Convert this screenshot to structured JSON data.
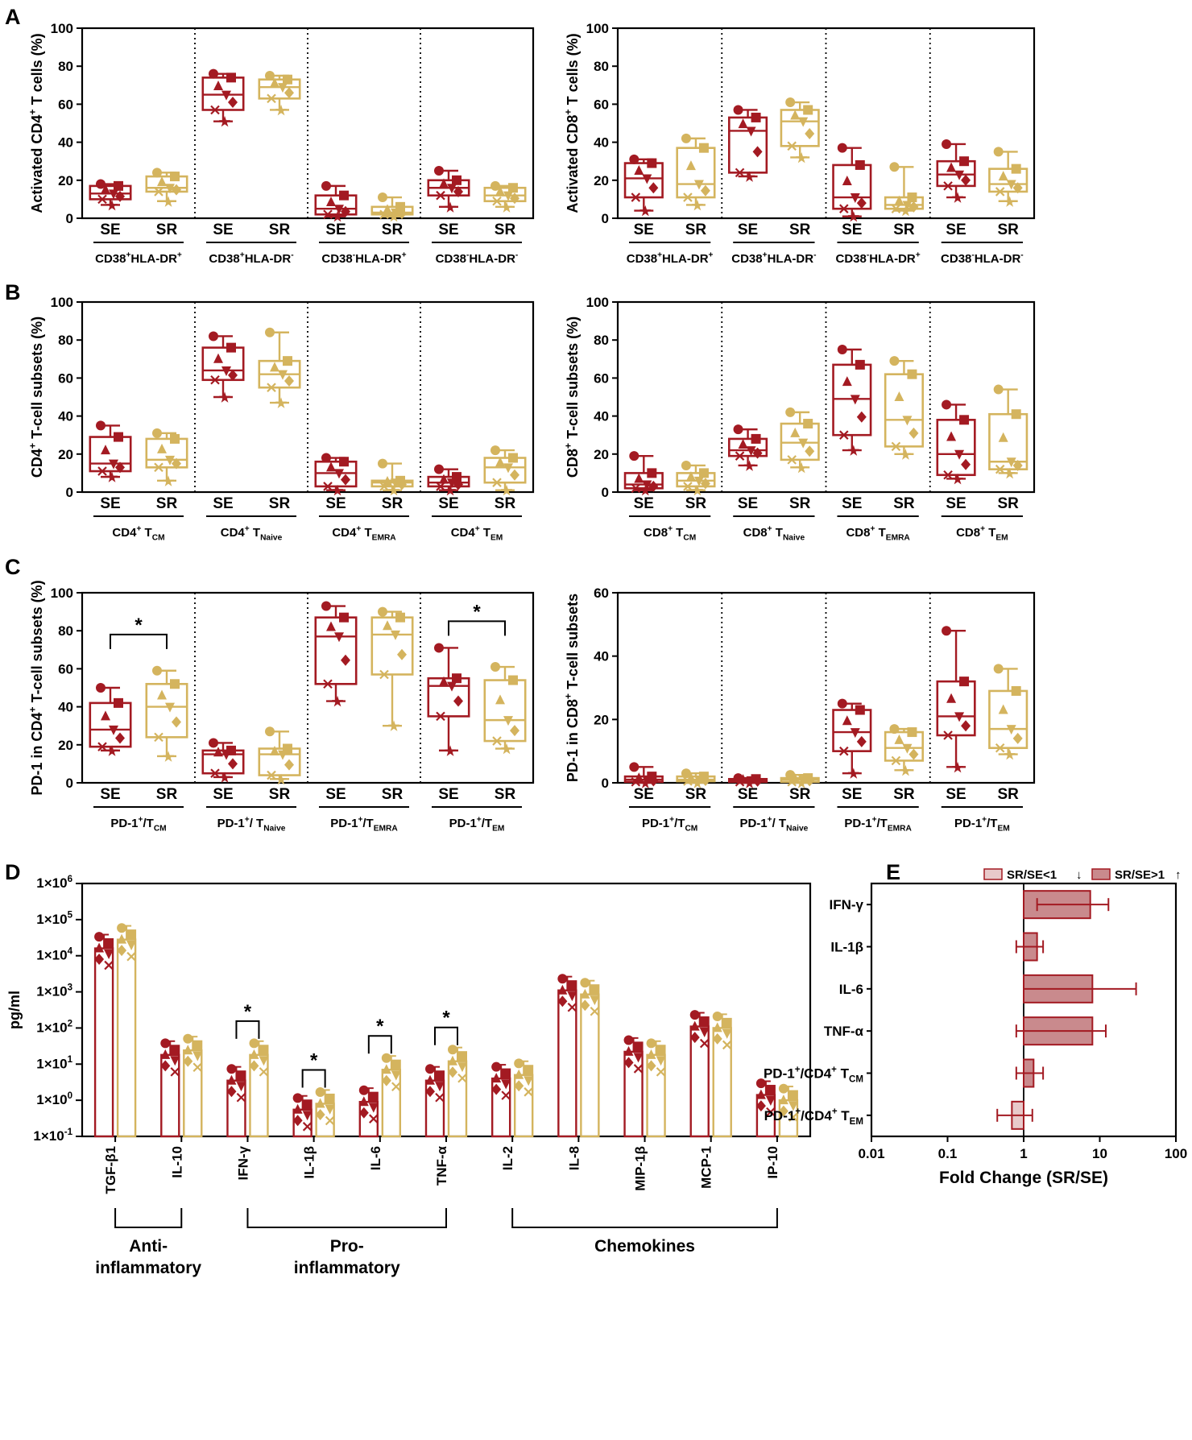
{
  "colors": {
    "SE": "#a31a22",
    "SR": "#d4b45e",
    "axis": "#000000"
  },
  "panel_letters": [
    "A",
    "B",
    "C",
    "D",
    "E"
  ],
  "box_panels": [
    {
      "id": "A-left",
      "panel": "A",
      "ylabel": "Activated CD4⁺ T cells (%)",
      "ymax": 100,
      "yticks": [
        "0",
        "20",
        "40",
        "60",
        "80",
        "100"
      ],
      "categories": [
        "SE",
        "SR"
      ],
      "groups": [
        "CD38⁺HLA-DR⁺",
        "CD38⁺HLA-DR⁻",
        "CD38⁻HLA-DR⁺",
        "CD38⁻HLA-DR⁻"
      ],
      "boxes": [
        [
          7,
          10,
          13,
          17,
          18
        ],
        [
          9,
          14,
          16,
          22,
          24
        ],
        [
          51,
          57,
          65,
          74,
          76
        ],
        [
          57,
          63,
          69,
          73,
          75
        ],
        [
          1,
          2,
          5,
          12,
          17
        ],
        [
          1,
          2,
          3,
          6,
          11
        ],
        [
          6,
          12,
          16,
          20,
          25
        ],
        [
          6,
          9,
          12,
          16,
          17
        ]
      ],
      "stars": []
    },
    {
      "id": "A-right",
      "panel": "A",
      "ylabel": "Activated CD8⁺ T cells (%)",
      "ymax": 100,
      "yticks": [
        "0",
        "20",
        "40",
        "60",
        "80",
        "100"
      ],
      "categories": [
        "SE",
        "SR"
      ],
      "groups": [
        "CD38⁺HLA-DR⁺",
        "CD38⁺HLA-DR⁻",
        "CD38⁻HLA-DR⁺",
        "CD38⁻HLA-DR⁻"
      ],
      "boxes": [
        [
          4,
          11,
          21,
          29,
          31
        ],
        [
          7,
          11,
          18,
          37,
          42
        ],
        [
          22,
          24,
          46,
          53,
          57
        ],
        [
          32,
          38,
          51,
          57,
          61
        ],
        [
          1,
          5,
          11,
          28,
          37
        ],
        [
          4,
          5,
          7,
          11,
          27
        ],
        [
          11,
          17,
          23,
          30,
          39
        ],
        [
          9,
          14,
          18,
          26,
          35
        ]
      ],
      "stars": []
    },
    {
      "id": "B-left",
      "panel": "B",
      "ylabel": "CD4⁺ T-cell subsets (%)",
      "ymax": 100,
      "yticks": [
        "0",
        "20",
        "40",
        "60",
        "80",
        "100"
      ],
      "categories": [
        "SE",
        "SR"
      ],
      "groups": [
        "CD4⁺ T_CM",
        "CD4⁺ T_Naive",
        "CD4⁺ T_EMRA",
        "CD4⁺ T_EM"
      ],
      "boxes": [
        [
          8,
          11,
          15,
          29,
          35
        ],
        [
          6,
          13,
          17,
          28,
          31
        ],
        [
          50,
          59,
          64,
          76,
          82
        ],
        [
          47,
          55,
          62,
          69,
          84
        ],
        [
          1,
          3,
          10,
          16,
          18
        ],
        [
          1,
          3,
          5,
          6,
          15
        ],
        [
          1,
          3,
          5,
          8,
          12
        ],
        [
          1,
          5,
          13,
          18,
          22
        ]
      ],
      "stars": []
    },
    {
      "id": "B-right",
      "panel": "B",
      "ylabel": "CD8⁺ T-cell subsets (%)",
      "ymax": 100,
      "yticks": [
        "0",
        "20",
        "40",
        "60",
        "80",
        "100"
      ],
      "categories": [
        "SE",
        "SR"
      ],
      "groups": [
        "CD8⁺ T_CM",
        "CD8⁺ T_Naive",
        "CD8⁺ T_EMRA",
        "CD8⁺ T_EM"
      ],
      "boxes": [
        [
          1,
          2,
          4,
          10,
          19
        ],
        [
          1,
          3,
          6,
          10,
          14
        ],
        [
          14,
          19,
          22,
          28,
          33
        ],
        [
          13,
          17,
          26,
          36,
          42
        ],
        [
          22,
          30,
          49,
          67,
          75
        ],
        [
          20,
          24,
          38,
          62,
          69
        ],
        [
          7,
          9,
          20,
          38,
          46
        ],
        [
          10,
          12,
          16,
          41,
          54
        ]
      ],
      "stars": []
    },
    {
      "id": "C-left",
      "panel": "C",
      "ylabel": "PD-1 in CD4⁺ T-cell subsets (%)",
      "ymax": 100,
      "yticks": [
        "0",
        "20",
        "40",
        "60",
        "80",
        "100"
      ],
      "categories": [
        "SE",
        "SR"
      ],
      "groups": [
        "PD-1⁺/T_CM",
        "PD-1⁺/ T_Naive",
        "PD-1⁺/T_EMRA",
        "PD-1⁺/T_EM"
      ],
      "boxes": [
        [
          17,
          19,
          28,
          42,
          50
        ],
        [
          14,
          24,
          40,
          52,
          59
        ],
        [
          3,
          5,
          15,
          17,
          21
        ],
        [
          2,
          4,
          15,
          18,
          27
        ],
        [
          43,
          52,
          77,
          87,
          93
        ],
        [
          30,
          57,
          78,
          87,
          90
        ],
        [
          17,
          35,
          51,
          55,
          71
        ],
        [
          18,
          22,
          33,
          54,
          61
        ]
      ],
      "stars": [
        {
          "pair": [
            0,
            1
          ],
          "y": 78,
          "label": "*"
        },
        {
          "pair": [
            6,
            7
          ],
          "y": 85,
          "label": "*"
        }
      ]
    },
    {
      "id": "C-right",
      "panel": "C",
      "ylabel": "PD-1 in CD8⁺ T-cell subsets",
      "ymax": 60,
      "yticks": [
        "0",
        "20",
        "40",
        "60"
      ],
      "categories": [
        "SE",
        "SR"
      ],
      "groups": [
        "PD-1⁺/T_CM",
        "PD-1⁺/ T_Naive",
        "PD-1⁺/T_EMRA",
        "PD-1⁺/T_EM"
      ],
      "boxes": [
        [
          0,
          0.3,
          1,
          2,
          5
        ],
        [
          0,
          0.5,
          1,
          2,
          3
        ],
        [
          0,
          0.3,
          0.8,
          1.2,
          1.5
        ],
        [
          0,
          0.3,
          1,
          1.5,
          2.5
        ],
        [
          3,
          10,
          16,
          23,
          25
        ],
        [
          4,
          7,
          11,
          16,
          17
        ],
        [
          5,
          15,
          21,
          32,
          48
        ],
        [
          9,
          11,
          17,
          29,
          36
        ]
      ],
      "stars": []
    }
  ],
  "bar_panel": {
    "panel": "D",
    "ylabel": "pg/ml",
    "ytick_labels": [
      "1×10⁻¹",
      "1×10⁰",
      "1×10¹",
      "1×10²",
      "1×10³",
      "1×10⁴",
      "1×10⁵",
      "1×10⁶"
    ],
    "analytes": [
      "TGF-β1",
      "IL-10",
      "IFN-γ",
      "IL-1β",
      "IL-6",
      "TNF-α",
      "IL-2",
      "IL-8",
      "MIP-1β",
      "MCP-1",
      "IP-10"
    ],
    "SE_means": [
      16000,
      18,
      3.5,
      0.55,
      0.9,
      3.5,
      4,
      1100,
      22,
      110,
      1.4
    ],
    "SR_means": [
      28000,
      24,
      18,
      0.8,
      7,
      12,
      5,
      850,
      18,
      100,
      1.0
    ],
    "stars": [
      {
        "analyte": 2,
        "label": "*"
      },
      {
        "analyte": 3,
        "label": "*"
      },
      {
        "analyte": 4,
        "label": "*"
      },
      {
        "analyte": 5,
        "label": "*"
      }
    ],
    "groups": [
      {
        "label_l1": "Anti-",
        "label_l2": "inflammatory",
        "from": 0,
        "to": 1
      },
      {
        "label_l1": "Pro-",
        "label_l2": "inflammatory",
        "from": 2,
        "to": 5
      },
      {
        "label_l1": "Chemokines",
        "label_l2": "",
        "from": 6,
        "to": 10
      }
    ]
  },
  "fold_panel": {
    "panel": "E",
    "legend": {
      "low": "SR/SE<1",
      "high": "SR/SE>1",
      "low_arrow": "↓",
      "high_arrow": "↑"
    },
    "xlabel": "Fold  Change (SR/SE)",
    "xticks": [
      "0.01",
      "0.1",
      "1",
      "10",
      "100"
    ],
    "rows": [
      {
        "label": "IFN-γ",
        "fold": 7.5,
        "lo": 1.5,
        "hi": 13
      },
      {
        "label": "IL-1β",
        "fold": 1.5,
        "lo": 0.8,
        "hi": 1.8
      },
      {
        "label": "IL-6",
        "fold": 8,
        "lo": 1,
        "hi": 30
      },
      {
        "label": "TNF-α",
        "fold": 8,
        "lo": 0.8,
        "hi": 12
      },
      {
        "label": "PD-1⁺/CD4⁺ T_CM",
        "fold": 1.35,
        "lo": 0.8,
        "hi": 1.8
      },
      {
        "label": "PD-1⁺/CD4⁺ T_EM",
        "fold": 0.7,
        "lo": 0.45,
        "hi": 1.3
      }
    ]
  }
}
